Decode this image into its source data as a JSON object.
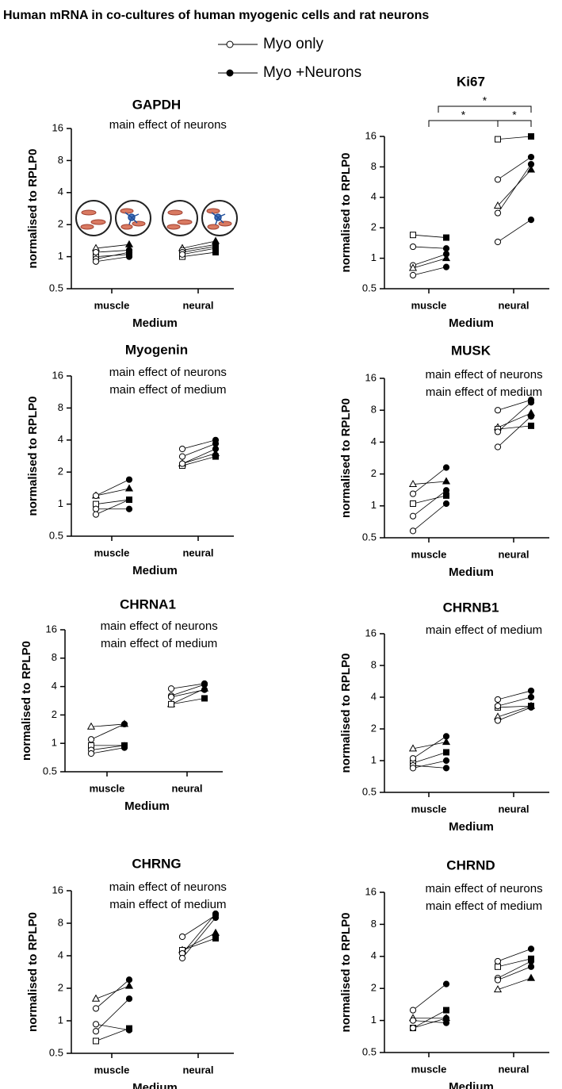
{
  "figure_title": "Human mRNA in co-cultures of human myogenic cells and rat neurons",
  "legend": [
    "Myo only",
    "Myo +Neurons"
  ],
  "chart_data": [
    {
      "type": "paired-dot",
      "title": "GAPDH",
      "annotations": [
        "main effect of neurons"
      ],
      "categories": [
        "muscle",
        "neural"
      ],
      "xlabel": "Medium",
      "ylabel": "normalised to RPLP0",
      "log_scale": 2,
      "ylim": [
        0.5,
        16
      ],
      "yticks": [
        0.5,
        1,
        2,
        4,
        8,
        16
      ],
      "donors": [
        {
          "marker": "triangle",
          "values": [
            [
              1.2,
              1.3
            ],
            [
              1.2,
              1.4
            ]
          ]
        },
        {
          "marker": "square",
          "values": [
            [
              1.0,
              1.05
            ],
            [
              1.0,
              1.1
            ]
          ]
        },
        {
          "marker": "circle",
          "values": [
            [
              1.1,
              1.15
            ],
            [
              1.15,
              1.3
            ]
          ]
        },
        {
          "marker": "circle",
          "values": [
            [
              0.95,
              1.1
            ],
            [
              1.1,
              1.25
            ]
          ]
        },
        {
          "marker": "circle",
          "values": [
            [
              0.9,
              1.0
            ],
            [
              1.05,
              1.2
            ]
          ]
        }
      ]
    },
    {
      "type": "paired-dot",
      "title": "Ki67",
      "annotations": [],
      "significance": [
        "*",
        "*",
        "*"
      ],
      "categories": [
        "muscle",
        "neural"
      ],
      "xlabel": "Medium",
      "ylabel": "normalised to RPLP0",
      "log_scale": 2,
      "ylim": [
        0.5,
        16
      ],
      "yticks": [
        0.5,
        1,
        2,
        4,
        8,
        16
      ],
      "donors": [
        {
          "marker": "square",
          "values": [
            [
              1.7,
              1.6
            ],
            [
              15,
              16
            ]
          ]
        },
        {
          "marker": "circle",
          "values": [
            [
              1.3,
              1.25
            ],
            [
              6,
              10
            ]
          ]
        },
        {
          "marker": "circle",
          "values": [
            [
              0.85,
              1.1
            ],
            [
              2.8,
              8.5
            ]
          ]
        },
        {
          "marker": "triangle",
          "values": [
            [
              0.8,
              1.0
            ],
            [
              3.3,
              7.5
            ]
          ]
        },
        {
          "marker": "circle",
          "values": [
            [
              0.68,
              0.82
            ],
            [
              1.45,
              2.4
            ]
          ]
        }
      ]
    },
    {
      "type": "paired-dot",
      "title": "Myogenin",
      "annotations": [
        "main effect of neurons",
        "main effect of medium"
      ],
      "categories": [
        "muscle",
        "neural"
      ],
      "xlabel": "Medium",
      "ylabel": "normalised to RPLP0",
      "log_scale": 2,
      "ylim": [
        0.5,
        16
      ],
      "yticks": [
        0.5,
        1,
        2,
        4,
        8,
        16
      ],
      "donors": [
        {
          "marker": "triangle",
          "values": [
            [
              1.2,
              1.4
            ],
            [
              2.4,
              3.0
            ]
          ]
        },
        {
          "marker": "square",
          "values": [
            [
              1.0,
              1.1
            ],
            [
              2.3,
              2.8
            ]
          ]
        },
        {
          "marker": "circle",
          "values": [
            [
              1.2,
              1.7
            ],
            [
              3.3,
              4.0
            ]
          ]
        },
        {
          "marker": "circle",
          "values": [
            [
              0.9,
              0.9
            ],
            [
              2.8,
              3.7
            ]
          ]
        },
        {
          "marker": "circle",
          "values": [
            [
              0.8,
              1.1
            ],
            [
              2.4,
              3.3
            ]
          ]
        }
      ]
    },
    {
      "type": "paired-dot",
      "title": "MUSK",
      "annotations": [
        "main effect of neurons",
        "main effect of medium"
      ],
      "categories": [
        "muscle",
        "neural"
      ],
      "xlabel": "Medium",
      "ylabel": "normalised to RPLP0",
      "log_scale": 2,
      "ylim": [
        0.5,
        16
      ],
      "yticks": [
        0.5,
        1,
        2,
        4,
        8,
        16
      ],
      "donors": [
        {
          "marker": "triangle",
          "values": [
            [
              1.6,
              1.7
            ],
            [
              5.5,
              7.5
            ]
          ]
        },
        {
          "marker": "square",
          "values": [
            [
              1.05,
              1.25
            ],
            [
              5.3,
              5.7
            ]
          ]
        },
        {
          "marker": "circle",
          "values": [
            [
              1.3,
              2.3
            ],
            [
              8.0,
              10
            ]
          ]
        },
        {
          "marker": "circle",
          "values": [
            [
              0.8,
              1.4
            ],
            [
              5.0,
              9.5
            ]
          ]
        },
        {
          "marker": "circle",
          "values": [
            [
              0.58,
              1.05
            ],
            [
              3.6,
              7.0
            ]
          ]
        }
      ]
    },
    {
      "type": "paired-dot",
      "title": "CHRNA1",
      "annotations": [
        "main effect of neurons",
        "main effect of medium"
      ],
      "categories": [
        "muscle",
        "neural"
      ],
      "xlabel": "Medium",
      "ylabel": "normalised to RPLP0",
      "log_scale": 2,
      "ylim": [
        0.5,
        16
      ],
      "yticks": [
        0.5,
        1,
        2,
        4,
        8,
        16
      ],
      "donors": [
        {
          "marker": "triangle",
          "values": [
            [
              1.5,
              1.6
            ],
            [
              2.6,
              3.8
            ]
          ]
        },
        {
          "marker": "square",
          "values": [
            [
              0.95,
              0.95
            ],
            [
              2.6,
              3.0
            ]
          ]
        },
        {
          "marker": "circle",
          "values": [
            [
              1.1,
              1.6
            ],
            [
              3.8,
              4.3
            ]
          ]
        },
        {
          "marker": "circle",
          "values": [
            [
              0.85,
              0.95
            ],
            [
              3.2,
              4.2
            ]
          ]
        },
        {
          "marker": "circle",
          "values": [
            [
              0.78,
              0.9
            ],
            [
              3.1,
              3.7
            ]
          ]
        }
      ]
    },
    {
      "type": "paired-dot",
      "title": "CHRNB1",
      "annotations": [
        "main effect of medium"
      ],
      "categories": [
        "muscle",
        "neural"
      ],
      "xlabel": "Medium",
      "ylabel": "normalised to RPLP0",
      "log_scale": 2,
      "ylim": [
        0.5,
        16
      ],
      "yticks": [
        0.5,
        1,
        2,
        4,
        8,
        16
      ],
      "donors": [
        {
          "marker": "triangle",
          "values": [
            [
              1.3,
              1.5
            ],
            [
              2.6,
              3.3
            ]
          ]
        },
        {
          "marker": "square",
          "values": [
            [
              0.95,
              1.2
            ],
            [
              3.2,
              3.3
            ]
          ]
        },
        {
          "marker": "circle",
          "values": [
            [
              1.05,
              1.7
            ],
            [
              3.8,
              4.6
            ]
          ]
        },
        {
          "marker": "circle",
          "values": [
            [
              0.9,
              0.85
            ],
            [
              3.3,
              4.0
            ]
          ]
        },
        {
          "marker": "circle",
          "values": [
            [
              0.85,
              1.0
            ],
            [
              2.4,
              3.2
            ]
          ]
        }
      ]
    },
    {
      "type": "paired-dot",
      "title": "CHRNG",
      "annotations": [
        "main effect of neurons",
        "main effect of medium"
      ],
      "categories": [
        "muscle",
        "neural"
      ],
      "xlabel": "Medium",
      "ylabel": "normalised to RPLP0",
      "log_scale": 2,
      "ylim": [
        0.5,
        16
      ],
      "yticks": [
        0.5,
        1,
        2,
        4,
        8,
        16
      ],
      "donors": [
        {
          "marker": "triangle",
          "values": [
            [
              1.6,
              2.1
            ],
            [
              4.5,
              6.5
            ]
          ]
        },
        {
          "marker": "square",
          "values": [
            [
              0.65,
              0.85
            ],
            [
              4.5,
              5.8
            ]
          ]
        },
        {
          "marker": "circle",
          "values": [
            [
              1.3,
              2.4
            ],
            [
              6.0,
              9.5
            ]
          ]
        },
        {
          "marker": "circle",
          "values": [
            [
              0.93,
              0.82
            ],
            [
              4.2,
              9.8
            ]
          ]
        },
        {
          "marker": "circle",
          "values": [
            [
              0.8,
              1.6
            ],
            [
              3.8,
              9.0
            ]
          ]
        }
      ]
    },
    {
      "type": "paired-dot",
      "title": "CHRND",
      "annotations": [
        "main effect of neurons",
        "main effect of medium"
      ],
      "categories": [
        "muscle",
        "neural"
      ],
      "xlabel": "Medium",
      "ylabel": "normalised to RPLP0",
      "log_scale": 2,
      "ylim": [
        0.5,
        16
      ],
      "yticks": [
        0.5,
        1,
        2,
        4,
        8,
        16
      ],
      "donors": [
        {
          "marker": "triangle",
          "values": [
            [
              1.05,
              1.05
            ],
            [
              1.95,
              2.5
            ]
          ]
        },
        {
          "marker": "square",
          "values": [
            [
              0.85,
              1.25
            ],
            [
              3.2,
              3.8
            ]
          ]
        },
        {
          "marker": "circle",
          "values": [
            [
              1.25,
              2.2
            ],
            [
              3.6,
              4.7
            ]
          ]
        },
        {
          "marker": "circle",
          "values": [
            [
              1.0,
              0.95
            ],
            [
              2.5,
              3.6
            ]
          ]
        },
        {
          "marker": "circle",
          "values": [
            [
              0.85,
              1.05
            ],
            [
              2.4,
              3.2
            ]
          ]
        }
      ]
    }
  ]
}
